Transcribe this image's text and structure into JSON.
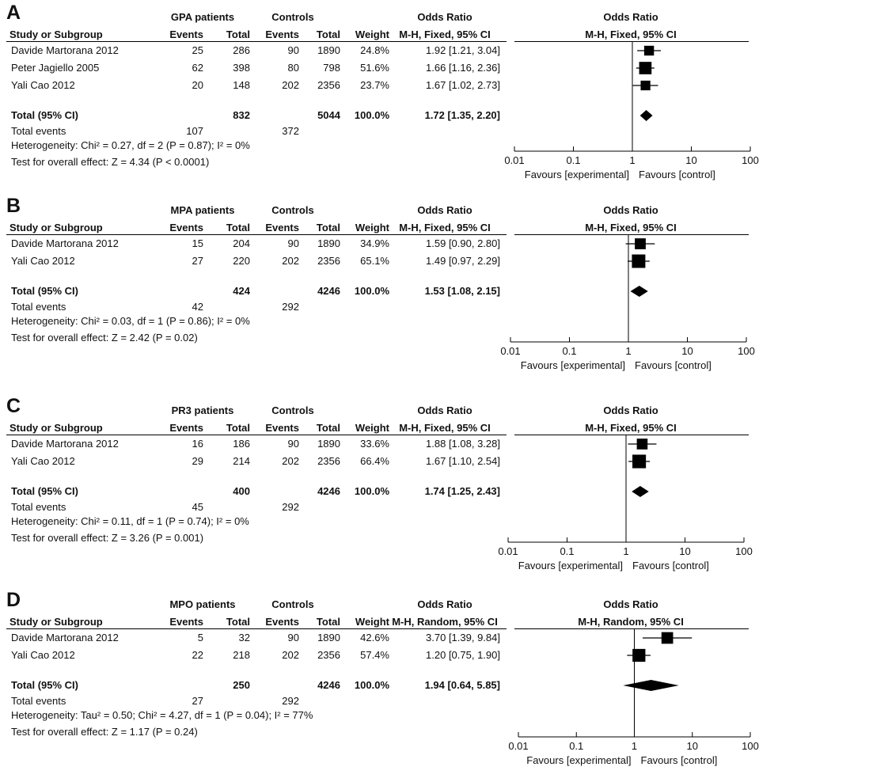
{
  "common": {
    "hdr_study": "Study or Subgroup",
    "hdr_events": "Events",
    "hdr_total": "Total",
    "hdr_weight": "Weight",
    "hdr_odds_ratio": "Odds Ratio",
    "controls": "Controls",
    "total_events_label": "Total events",
    "favours_left": "Favours [experimental]",
    "favours_right": "Favours [control]"
  },
  "chart_data": [
    {
      "type": "forest",
      "letter": "A",
      "group_label": "GPA patients",
      "method": "M-H, Fixed, 95% CI",
      "scale": "log",
      "xlim": [
        0.01,
        100
      ],
      "ticks": [
        "0.01",
        "0.1",
        "1",
        "10",
        "100"
      ],
      "studies": [
        {
          "name": "Davide Martorana 2012",
          "ev1": "25",
          "tot1": "286",
          "ev2": "90",
          "tot2": "1890",
          "weight": "24.8%",
          "or_text": "1.92 [1.21, 3.04]",
          "or": 1.92,
          "lo": 1.21,
          "hi": 3.04,
          "w": 24.8
        },
        {
          "name": "Peter Jagiello 2005",
          "ev1": "62",
          "tot1": "398",
          "ev2": "80",
          "tot2": "798",
          "weight": "51.6%",
          "or_text": "1.66 [1.16, 2.36]",
          "or": 1.66,
          "lo": 1.16,
          "hi": 2.36,
          "w": 51.6
        },
        {
          "name": "Yali Cao 2012",
          "ev1": "20",
          "tot1": "148",
          "ev2": "202",
          "tot2": "2356",
          "weight": "23.7%",
          "or_text": "1.67 [1.02, 2.73]",
          "or": 1.67,
          "lo": 1.02,
          "hi": 2.73,
          "w": 23.7
        }
      ],
      "total": {
        "label": "Total (95% CI)",
        "tot1": "832",
        "tot2": "5044",
        "weight": "100.0%",
        "or_text": "1.72 [1.35, 2.20]",
        "or": 1.72,
        "lo": 1.35,
        "hi": 2.2
      },
      "total_events": {
        "ev1": "107",
        "ev2": "372"
      },
      "heterogeneity": "Heterogeneity: Chi² = 0.27, df = 2 (P = 0.87); I² = 0%",
      "overall_effect": "Test for overall effect: Z = 4.34 (P < 0.0001)"
    },
    {
      "type": "forest",
      "letter": "B",
      "group_label": "MPA patients",
      "method": "M-H, Fixed, 95% CI",
      "scale": "log",
      "xlim": [
        0.01,
        100
      ],
      "ticks": [
        "0.01",
        "0.1",
        "1",
        "10",
        "100"
      ],
      "studies": [
        {
          "name": "Davide Martorana 2012",
          "ev1": "15",
          "tot1": "204",
          "ev2": "90",
          "tot2": "1890",
          "weight": "34.9%",
          "or_text": "1.59 [0.90, 2.80]",
          "or": 1.59,
          "lo": 0.9,
          "hi": 2.8,
          "w": 34.9
        },
        {
          "name": "Yali Cao 2012",
          "ev1": "27",
          "tot1": "220",
          "ev2": "202",
          "tot2": "2356",
          "weight": "65.1%",
          "or_text": "1.49 [0.97, 2.29]",
          "or": 1.49,
          "lo": 0.97,
          "hi": 2.29,
          "w": 65.1
        }
      ],
      "total": {
        "label": "Total (95% CI)",
        "tot1": "424",
        "tot2": "4246",
        "weight": "100.0%",
        "or_text": "1.53 [1.08, 2.15]",
        "or": 1.53,
        "lo": 1.08,
        "hi": 2.15
      },
      "total_events": {
        "ev1": "42",
        "ev2": "292"
      },
      "heterogeneity": "Heterogeneity: Chi² = 0.03, df = 1 (P = 0.86); I² = 0%",
      "overall_effect": "Test for overall effect: Z = 2.42 (P = 0.02)"
    },
    {
      "type": "forest",
      "letter": "C",
      "group_label": "PR3 patients",
      "method": "M-H, Fixed, 95% CI",
      "scale": "log",
      "xlim": [
        0.01,
        100
      ],
      "ticks": [
        "0.01",
        "0.1",
        "1",
        "10",
        "100"
      ],
      "studies": [
        {
          "name": "Davide Martorana 2012",
          "ev1": "16",
          "tot1": "186",
          "ev2": "90",
          "tot2": "1890",
          "weight": "33.6%",
          "or_text": "1.88 [1.08, 3.28]",
          "or": 1.88,
          "lo": 1.08,
          "hi": 3.28,
          "w": 33.6
        },
        {
          "name": "Yali Cao 2012",
          "ev1": "29",
          "tot1": "214",
          "ev2": "202",
          "tot2": "2356",
          "weight": "66.4%",
          "or_text": "1.67 [1.10, 2.54]",
          "or": 1.67,
          "lo": 1.1,
          "hi": 2.54,
          "w": 66.4
        }
      ],
      "total": {
        "label": "Total (95% CI)",
        "tot1": "400",
        "tot2": "4246",
        "weight": "100.0%",
        "or_text": "1.74 [1.25, 2.43]",
        "or": 1.74,
        "lo": 1.25,
        "hi": 2.43
      },
      "total_events": {
        "ev1": "45",
        "ev2": "292"
      },
      "heterogeneity": "Heterogeneity: Chi² = 0.11, df = 1 (P = 0.74); I² = 0%",
      "overall_effect": "Test for overall effect: Z = 3.26 (P = 0.001)"
    },
    {
      "type": "forest",
      "letter": "D",
      "group_label": "MPO patients",
      "method": "M-H, Random, 95% CI",
      "scale": "log",
      "xlim": [
        0.01,
        100
      ],
      "ticks": [
        "0.01",
        "0.1",
        "1",
        "10",
        "100"
      ],
      "studies": [
        {
          "name": "Davide Martorana 2012",
          "ev1": "5",
          "tot1": "32",
          "ev2": "90",
          "tot2": "1890",
          "weight": "42.6%",
          "or_text": "3.70 [1.39, 9.84]",
          "or": 3.7,
          "lo": 1.39,
          "hi": 9.84,
          "w": 42.6
        },
        {
          "name": "Yali Cao 2012",
          "ev1": "22",
          "tot1": "218",
          "ev2": "202",
          "tot2": "2356",
          "weight": "57.4%",
          "or_text": "1.20 [0.75, 1.90]",
          "or": 1.2,
          "lo": 0.75,
          "hi": 1.9,
          "w": 57.4
        }
      ],
      "total": {
        "label": "Total (95% CI)",
        "tot1": "250",
        "tot2": "4246",
        "weight": "100.0%",
        "or_text": "1.94 [0.64, 5.85]",
        "or": 1.94,
        "lo": 0.64,
        "hi": 5.85
      },
      "total_events": {
        "ev1": "27",
        "ev2": "292"
      },
      "heterogeneity": "Heterogeneity: Tau² = 0.50; Chi² = 4.27, df = 1 (P = 0.04); I² = 77%",
      "overall_effect": "Test for overall effect: Z = 1.17 (P = 0.24)"
    }
  ]
}
